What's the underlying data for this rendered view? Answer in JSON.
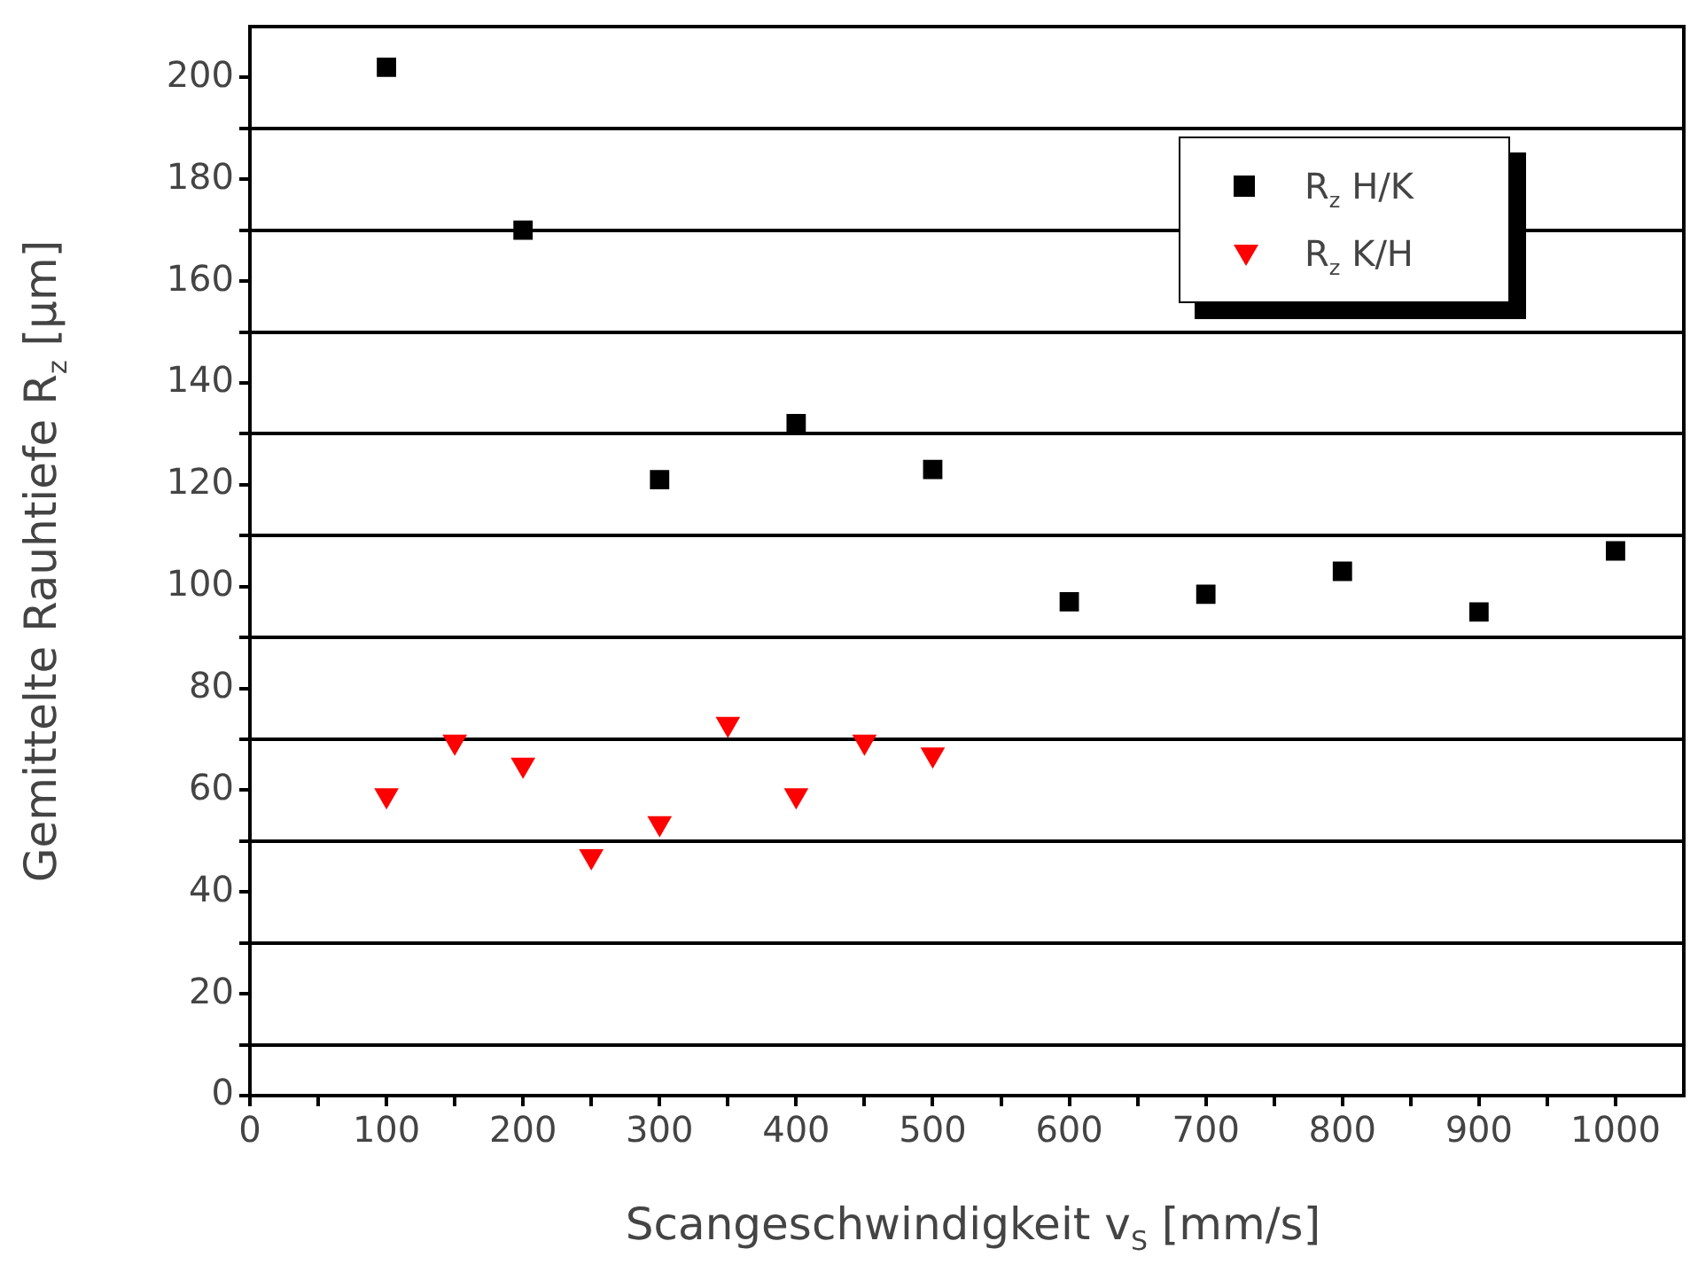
{
  "chart_data": {
    "type": "scatter",
    "xlabel": "Scangeschwindigkeit v$_{S}$ [mm/s]",
    "ylabel": "Gemittelte Rauhtiefe R$_{z}$ [µm]",
    "xlim": [
      0,
      1050
    ],
    "xticks": [
      0,
      {
        "value": 50,
        "label": null
      },
      100,
      {
        "value": 150,
        "label": null
      },
      200,
      {
        "value": 250,
        "label": null
      },
      300,
      {
        "value": 350,
        "label": null
      },
      400,
      {
        "value": 450,
        "label": null
      },
      500,
      {
        "value": 550,
        "label": null
      },
      600,
      {
        "value": 650,
        "label": null
      },
      700,
      {
        "value": 750,
        "label": null
      },
      800,
      {
        "value": 850,
        "label": null
      },
      900,
      {
        "value": 950,
        "label": null
      },
      1000
    ],
    "ylim": [
      0,
      210
    ],
    "yticks": [
      0,
      {
        "value": 10,
        "label": null
      },
      20,
      {
        "value": 30,
        "label": null
      },
      40,
      {
        "value": 50,
        "label": null
      },
      60,
      {
        "value": 70,
        "label": null
      },
      80,
      {
        "value": 90,
        "label": null
      },
      100,
      {
        "value": 110,
        "label": null
      },
      120,
      {
        "value": 130,
        "label": null
      },
      140,
      {
        "value": 150,
        "label": null
      },
      160,
      {
        "value": 170,
        "label": null
      },
      180,
      {
        "value": 190,
        "label": null
      },
      200
    ],
    "grid": "y",
    "legend": "top right",
    "series": [
      {
        "name": "R$_{z}$ H/K",
        "color": "#000000",
        "marker": "square",
        "x": [
          100,
          200,
          300,
          400,
          500,
          600,
          700,
          800,
          900,
          1000
        ],
        "values": [
          202,
          170,
          121,
          132,
          123,
          97,
          98.5,
          103,
          95,
          107
        ]
      },
      {
        "name": "R$_{z}$ K/H",
        "color": "#ff0000",
        "marker": "triangle",
        "x": [
          100,
          150,
          200,
          250,
          300,
          350,
          400,
          450,
          500
        ],
        "values": [
          59,
          69.5,
          65,
          47,
          53.5,
          73,
          59,
          69.5,
          67
        ]
      }
    ]
  }
}
